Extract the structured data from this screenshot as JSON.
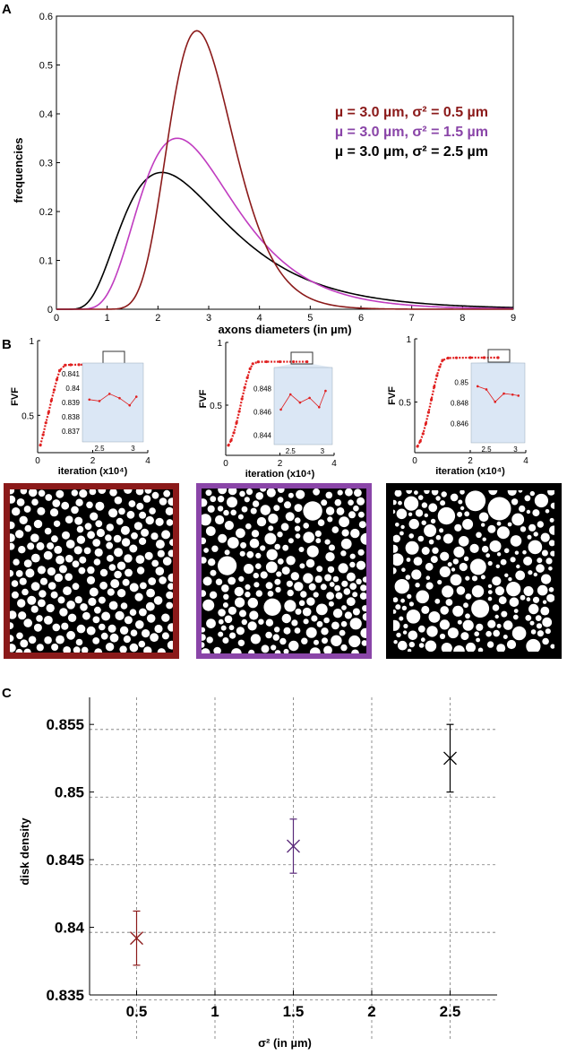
{
  "panels": {
    "a": "A",
    "b": "B",
    "c": "C"
  },
  "colors": {
    "dark_red": "#8b1a1a",
    "purple": "#8a45a8",
    "magenta": "#c03cc0",
    "black": "#000000",
    "red_dots": "#e02020",
    "inset_bg": "#dbe7f5",
    "grid": "#777777"
  },
  "chart_data": [
    {
      "type": "line",
      "panel": "A",
      "xlabel": "axons diameters (in µm)",
      "ylabel": "frequencies",
      "xlim": [
        0,
        9
      ],
      "ylim": [
        0,
        0.6
      ],
      "xticks": [
        "0",
        "1",
        "2",
        "3",
        "4",
        "5",
        "6",
        "7",
        "8",
        "9"
      ],
      "yticks": [
        "0",
        "0.1",
        "0.2",
        "0.3",
        "0.4",
        "0.5",
        "0.6"
      ],
      "legend_position": "right",
      "series": [
        {
          "name": "µ = 3.0 µm, σ² = 0.5 µm",
          "color": "#8b1a1a",
          "legend_color": "#8b1a1a",
          "mean": 3.0,
          "variance": 0.5,
          "x": [
            0.5,
            1,
            1.5,
            2,
            2.5,
            3,
            3.5,
            4,
            4.5,
            5,
            6,
            7,
            8,
            9
          ],
          "y": [
            0,
            0.005,
            0.07,
            0.3,
            0.53,
            0.57,
            0.45,
            0.27,
            0.13,
            0.05,
            0.01,
            0,
            0,
            0
          ]
        },
        {
          "name": "µ = 3.0 µm, σ² = 1.5 µm",
          "color": "#c03cc0",
          "legend_color": "#8a45a8",
          "mean": 3.0,
          "variance": 1.5,
          "x": [
            0.3,
            0.5,
            1,
            1.5,
            2,
            2.5,
            3,
            3.5,
            4,
            4.5,
            5,
            6,
            7,
            8,
            9
          ],
          "y": [
            0,
            0.01,
            0.06,
            0.2,
            0.32,
            0.35,
            0.33,
            0.27,
            0.2,
            0.13,
            0.08,
            0.03,
            0.01,
            0.004,
            0.001
          ]
        },
        {
          "name": "µ = 3.0 µm, σ² = 2.5 µm",
          "color": "#000000",
          "legend_color": "#000000",
          "mean": 3.0,
          "variance": 2.5,
          "x": [
            0,
            0.5,
            1,
            1.5,
            2,
            2.5,
            3,
            3.5,
            4,
            4.5,
            5,
            6,
            7,
            8,
            9
          ],
          "y": [
            0,
            0.04,
            0.13,
            0.23,
            0.28,
            0.28,
            0.26,
            0.22,
            0.18,
            0.14,
            0.1,
            0.05,
            0.02,
            0.01,
            0.004
          ]
        }
      ]
    },
    {
      "type": "scatter",
      "panel": "B-left",
      "xlabel": "iteration (x10⁴)",
      "ylabel": "FVF",
      "xlim": [
        0,
        4
      ],
      "ylim": [
        0.25,
        1
      ],
      "xticks": [
        "0",
        "2",
        "4"
      ],
      "yticks": [
        "0.5",
        "1"
      ],
      "series": [
        {
          "x": [
            0.1,
            0.2,
            0.3,
            0.4,
            0.5,
            0.6,
            0.7,
            0.8,
            1,
            1.2,
            1.5,
            2,
            2.5,
            3
          ],
          "y": [
            0.3,
            0.37,
            0.45,
            0.52,
            0.6,
            0.67,
            0.74,
            0.8,
            0.836,
            0.838,
            0.839,
            0.839,
            0.839,
            0.839
          ]
        }
      ],
      "inset": {
        "xticks": [
          "2.5",
          "3"
        ],
        "yticks": [
          "0.841",
          "0.84",
          "0.839",
          "0.838",
          "0.837"
        ],
        "xlim": [
          2.3,
          3.1
        ],
        "ylim": [
          0.8365,
          0.8415
        ],
        "x": [
          2.35,
          2.5,
          2.65,
          2.8,
          2.95,
          3.05
        ],
        "y": [
          0.8392,
          0.8391,
          0.8396,
          0.8393,
          0.8388,
          0.8394
        ]
      }
    },
    {
      "type": "scatter",
      "panel": "B-middle",
      "xlabel": "iteration (x10⁴)",
      "ylabel": "FVF",
      "xlim": [
        0,
        4
      ],
      "ylim": [
        0.1,
        1
      ],
      "xticks": [
        "0",
        "2",
        "4"
      ],
      "yticks": [
        "0.5",
        "1"
      ],
      "series": [
        {
          "x": [
            0.1,
            0.2,
            0.3,
            0.4,
            0.5,
            0.6,
            0.7,
            0.8,
            0.9,
            1,
            1.2,
            1.5,
            2,
            2.5,
            3
          ],
          "y": [
            0.18,
            0.22,
            0.28,
            0.36,
            0.45,
            0.55,
            0.64,
            0.72,
            0.79,
            0.83,
            0.845,
            0.846,
            0.846,
            0.846,
            0.846
          ]
        }
      ],
      "inset": {
        "xticks": [
          "2.5",
          "3"
        ],
        "yticks": [
          "0.848",
          "0.846",
          "0.844"
        ],
        "xlim": [
          2.3,
          3.1
        ],
        "ylim": [
          0.8435,
          0.8495
        ],
        "x": [
          2.35,
          2.5,
          2.65,
          2.8,
          2.95,
          3.05
        ],
        "y": [
          0.8462,
          0.8475,
          0.8468,
          0.8472,
          0.8464,
          0.8478
        ]
      }
    },
    {
      "type": "scatter",
      "panel": "B-right",
      "xlabel": "iteration (x10⁴)",
      "ylabel": "FVF",
      "xlim": [
        0,
        4
      ],
      "ylim": [
        0.1,
        1
      ],
      "xticks": [
        "0",
        "2",
        "4"
      ],
      "yticks": [
        "0.5",
        "1"
      ],
      "series": [
        {
          "x": [
            0.1,
            0.2,
            0.3,
            0.4,
            0.5,
            0.6,
            0.7,
            0.8,
            0.9,
            1,
            1.2,
            1.5,
            2,
            2.5,
            3
          ],
          "y": [
            0.15,
            0.19,
            0.25,
            0.33,
            0.42,
            0.52,
            0.62,
            0.71,
            0.78,
            0.83,
            0.848,
            0.85,
            0.851,
            0.851,
            0.851
          ]
        }
      ],
      "inset": {
        "xticks": [
          "2.5",
          "3"
        ],
        "yticks": [
          "0.85",
          "0.848",
          "0.846"
        ],
        "xlim": [
          2.3,
          3.1
        ],
        "ylim": [
          0.8445,
          0.8515
        ],
        "x": [
          2.35,
          2.5,
          2.65,
          2.8,
          2.95,
          3.05
        ],
        "y": [
          0.8496,
          0.8493,
          0.8481,
          0.8489,
          0.8488,
          0.8487
        ]
      }
    },
    {
      "type": "scatter",
      "panel": "C",
      "xlabel": "σ² (in µm)",
      "ylabel": "disk density",
      "xlim": [
        0.2,
        2.8
      ],
      "ylim": [
        0.835,
        0.857
      ],
      "xticks": [
        "0.5",
        "1",
        "1.5",
        "2",
        "2.5"
      ],
      "yticks": [
        "0.835",
        "0.84",
        "0.845",
        "0.85",
        "0.855"
      ],
      "grid": true,
      "points": [
        {
          "x": 0.5,
          "y": 0.8392,
          "err_low": 0.8372,
          "err_high": 0.8412,
          "color": "#8b1a1a"
        },
        {
          "x": 1.5,
          "y": 0.846,
          "err_low": 0.844,
          "err_high": 0.848,
          "color": "#5a2a7a"
        },
        {
          "x": 2.5,
          "y": 0.8525,
          "err_low": 0.85,
          "err_high": 0.855,
          "color": "#000000"
        }
      ]
    }
  ],
  "packings": [
    {
      "frame_color": "#8b1a1a",
      "variance": 0.5
    },
    {
      "frame_color": "#8a45a8",
      "variance": 1.5
    },
    {
      "frame_color": "#000000",
      "variance": 2.5
    }
  ]
}
